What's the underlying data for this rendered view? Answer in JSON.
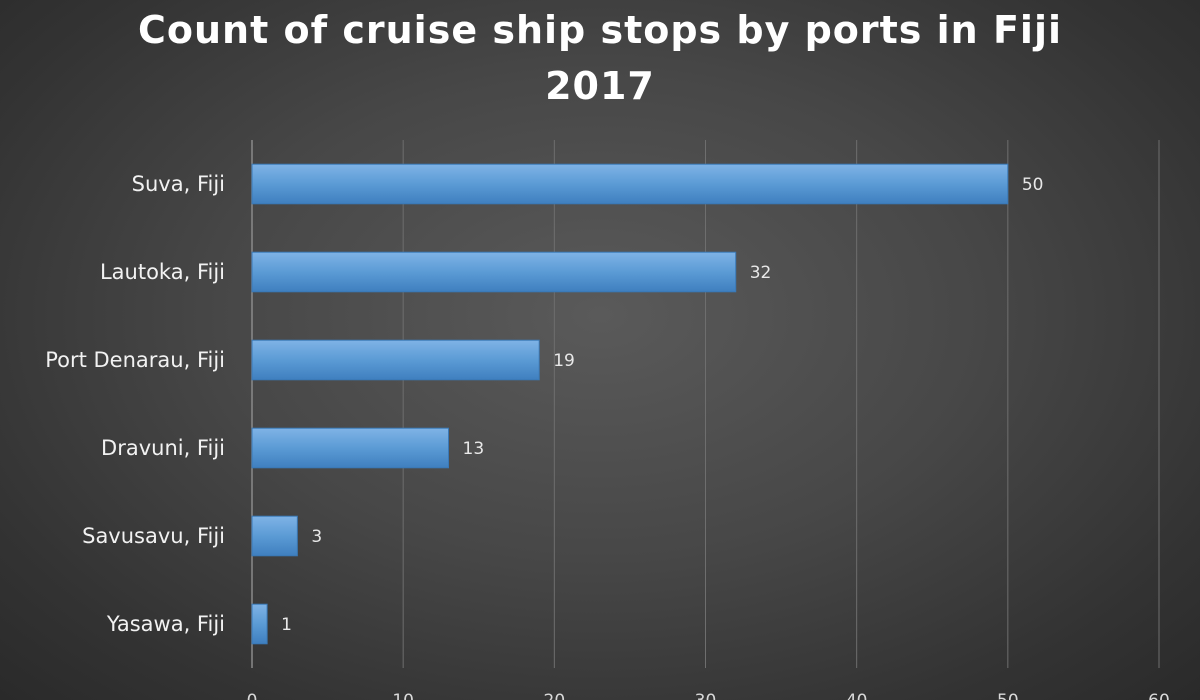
{
  "chart_data": {
    "type": "bar",
    "orientation": "horizontal",
    "title": "Count of cruise ship stops by ports in Fiji 2017",
    "title_lines": [
      "Count of cruise ship stops by ports in Fiji",
      "2017"
    ],
    "categories": [
      "Suva, Fiji",
      "Lautoka, Fiji",
      "Port Denarau, Fiji",
      "Dravuni, Fiji",
      "Savusavu, Fiji",
      "Yasawa, Fiji"
    ],
    "values": [
      50,
      32,
      19,
      13,
      3,
      1
    ],
    "xlabel": "",
    "ylabel": "",
    "xlim": [
      0,
      60
    ],
    "x_ticks": [
      0,
      10,
      20,
      30,
      40,
      50,
      60
    ],
    "grid": true,
    "data_labels": true,
    "bar_color": "#5b9bd5",
    "background_color": "#474747"
  }
}
